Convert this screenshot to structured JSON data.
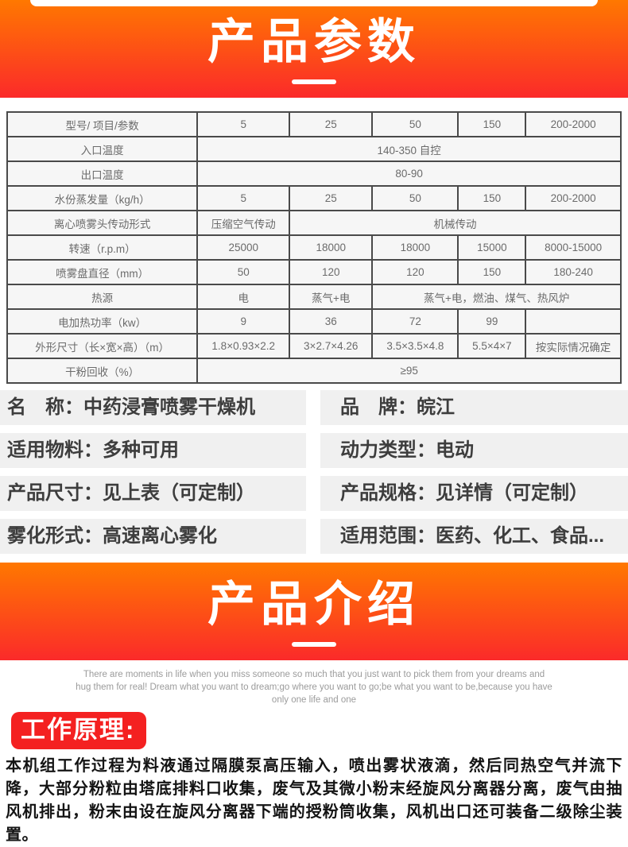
{
  "colors": {
    "banner_top": "#ff7800",
    "banner_bottom": "#fb2a2a",
    "badge_red": "#f42121",
    "table_border": "#4a4a4a",
    "cell_bg": "#f6f6f6",
    "table_text": "#6b6b6b",
    "bar_bg": "#f0f0f0",
    "attr_text": "#3d3d3d",
    "quote_text": "#9b9b9b",
    "body_text": "#141414"
  },
  "banner_params": {
    "title": "产品参数"
  },
  "banner_intro": {
    "title": "产品介绍"
  },
  "spec_table": {
    "col_widths": [
      "31%",
      "15%",
      "13.5%",
      "14%",
      "11%",
      "15.5%"
    ],
    "rows": [
      {
        "cells": [
          {
            "t": "型号/ 项目/参数"
          },
          {
            "t": "5"
          },
          {
            "t": "25"
          },
          {
            "t": "50"
          },
          {
            "t": "150"
          },
          {
            "t": "200-2000"
          }
        ]
      },
      {
        "cells": [
          {
            "t": "入口温度"
          },
          {
            "t": "140-350 自控",
            "span": 5
          }
        ]
      },
      {
        "cells": [
          {
            "t": "出口温度"
          },
          {
            "t": "80-90",
            "span": 5
          }
        ]
      },
      {
        "cells": [
          {
            "t": "水份蒸发量（kg/h）"
          },
          {
            "t": "5"
          },
          {
            "t": "25"
          },
          {
            "t": "50"
          },
          {
            "t": "150"
          },
          {
            "t": "200-2000"
          }
        ]
      },
      {
        "cells": [
          {
            "t": "离心喷雾头传动形式"
          },
          {
            "t": "压缩空气传动"
          },
          {
            "t": "机械传动",
            "span": 4
          }
        ]
      },
      {
        "cells": [
          {
            "t": "转速（r.p.m）"
          },
          {
            "t": "25000"
          },
          {
            "t": "18000"
          },
          {
            "t": "18000"
          },
          {
            "t": "15000"
          },
          {
            "t": "8000-15000"
          }
        ]
      },
      {
        "cells": [
          {
            "t": "喷雾盘直径（mm）"
          },
          {
            "t": "50"
          },
          {
            "t": "120"
          },
          {
            "t": "120"
          },
          {
            "t": "150"
          },
          {
            "t": "180-240"
          }
        ]
      },
      {
        "cells": [
          {
            "t": "热源"
          },
          {
            "t": "电"
          },
          {
            "t": "蒸气+电"
          },
          {
            "t": "蒸气+电，燃油、煤气、热风炉",
            "span": 3
          }
        ]
      },
      {
        "cells": [
          {
            "t": "电加热功率（kw）"
          },
          {
            "t": "9"
          },
          {
            "t": "36"
          },
          {
            "t": "72"
          },
          {
            "t": "99"
          },
          {
            "t": ""
          }
        ]
      },
      {
        "cells": [
          {
            "t": "外形尺寸（长×宽×高）（m）"
          },
          {
            "t": "1.8×0.93×2.2"
          },
          {
            "t": "3×2.7×4.26"
          },
          {
            "t": "3.5×3.5×4.8"
          },
          {
            "t": "5.5×4×7"
          },
          {
            "t": "按实际情况确定"
          }
        ]
      },
      {
        "cells": [
          {
            "t": "干粉回收（%）"
          },
          {
            "t": "≥95",
            "span": 5
          }
        ]
      }
    ]
  },
  "attributes": [
    {
      "label": "名　称：",
      "value": "中药浸膏喷雾干燥机"
    },
    {
      "label": "品　牌：",
      "value": "皖江"
    },
    {
      "label": "适用物料：",
      "value": "多种可用"
    },
    {
      "label": "动力类型：",
      "value": "电动"
    },
    {
      "label": "产品尺寸：",
      "value": "见上表（可定制）"
    },
    {
      "label": "产品规格：",
      "value": "见详情（可定制）"
    },
    {
      "label": "雾化形式：",
      "value": "高速离心雾化"
    },
    {
      "label": "适用范围：",
      "value": "医药、化工、食品..."
    }
  ],
  "intro": {
    "quote": "There are moments in life when you miss someone so much that you just want to pick them from your dreams and hug them for real! Dream what you want to dream;go where you want to go;be what you want to be,because you have only one life and one",
    "principle_title": "工作原理:",
    "principle_text": "本机组工作过程为料液通过隔膜泵高压输入，喷出雾状液滴，然后同热空气并流下降，大部分粉粒由塔底排料口收集，废气及其微小粉末经旋风分离器分离，废气由抽风机排出，粉末由设在旋风分离器下端的授粉筒收集，风机出口还可装备二级除尘装置。"
  }
}
